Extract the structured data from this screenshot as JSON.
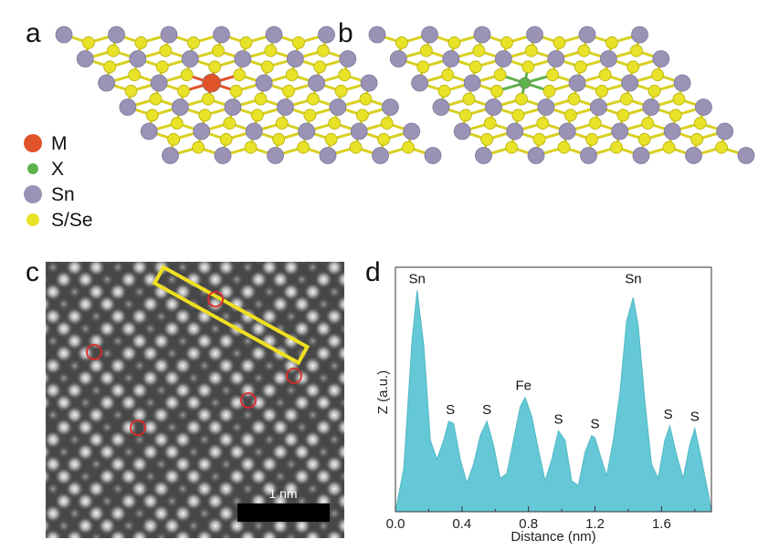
{
  "panels": {
    "a": "a",
    "b": "b",
    "c": "c",
    "d": "d"
  },
  "legend": [
    {
      "label": "M",
      "color": "#e0532a"
    },
    {
      "label": "X",
      "color": "#5fb14a"
    },
    {
      "label": "Sn",
      "color": "#9a93b6"
    },
    {
      "label": "S/Se",
      "color": "#e8e228"
    }
  ],
  "colors": {
    "sn": "#9a93b6",
    "chalcogen": "#e8e228",
    "dopant_m": "#e0532a",
    "dopant_x": "#5fb14a",
    "profile_fill": "#64c8d6",
    "box": "#f0e020",
    "marker": "#e02828"
  },
  "stem": {
    "scale_label": "1 nm",
    "box_icon": "yellow-line-profile-box",
    "marker_icon": "red-circle-dopant-marker"
  },
  "chart_data": {
    "type": "area",
    "xlabel": "Distance (nm)",
    "ylabel": "Z (a.u.)",
    "xlim": [
      0,
      1.9
    ],
    "ylim": [
      0,
      1
    ],
    "xticks": [
      0.0,
      0.4,
      0.8,
      1.2,
      1.6
    ],
    "xtick_labels": [
      "0.0",
      "0.4",
      "0.8",
      "1.2",
      "1.6"
    ],
    "x": [
      0.0,
      0.05,
      0.1,
      0.13,
      0.17,
      0.21,
      0.25,
      0.29,
      0.32,
      0.35,
      0.39,
      0.43,
      0.47,
      0.51,
      0.55,
      0.59,
      0.63,
      0.67,
      0.71,
      0.75,
      0.78,
      0.82,
      0.86,
      0.9,
      0.94,
      0.98,
      1.02,
      1.06,
      1.1,
      1.14,
      1.18,
      1.2,
      1.23,
      1.27,
      1.31,
      1.35,
      1.39,
      1.43,
      1.46,
      1.5,
      1.54,
      1.58,
      1.62,
      1.65,
      1.69,
      1.73,
      1.77,
      1.8,
      1.84,
      1.88,
      1.9
    ],
    "values": [
      0.0,
      0.18,
      0.72,
      0.93,
      0.7,
      0.3,
      0.22,
      0.3,
      0.38,
      0.37,
      0.22,
      0.12,
      0.2,
      0.32,
      0.38,
      0.28,
      0.14,
      0.16,
      0.3,
      0.44,
      0.48,
      0.4,
      0.26,
      0.13,
      0.22,
      0.34,
      0.3,
      0.13,
      0.11,
      0.25,
      0.32,
      0.31,
      0.24,
      0.15,
      0.3,
      0.5,
      0.8,
      0.9,
      0.78,
      0.46,
      0.2,
      0.14,
      0.3,
      0.36,
      0.24,
      0.14,
      0.28,
      0.35,
      0.22,
      0.08,
      0.0
    ],
    "peak_labels": [
      {
        "label": "Sn",
        "x": 0.13,
        "y": 0.93
      },
      {
        "label": "S",
        "x": 0.33,
        "y": 0.38
      },
      {
        "label": "S",
        "x": 0.55,
        "y": 0.38
      },
      {
        "label": "Fe",
        "x": 0.77,
        "y": 0.48
      },
      {
        "label": "S",
        "x": 0.98,
        "y": 0.34
      },
      {
        "label": "S",
        "x": 1.2,
        "y": 0.32
      },
      {
        "label": "Sn",
        "x": 1.43,
        "y": 0.93
      },
      {
        "label": "S",
        "x": 1.64,
        "y": 0.36
      },
      {
        "label": "S",
        "x": 1.8,
        "y": 0.35
      }
    ]
  }
}
